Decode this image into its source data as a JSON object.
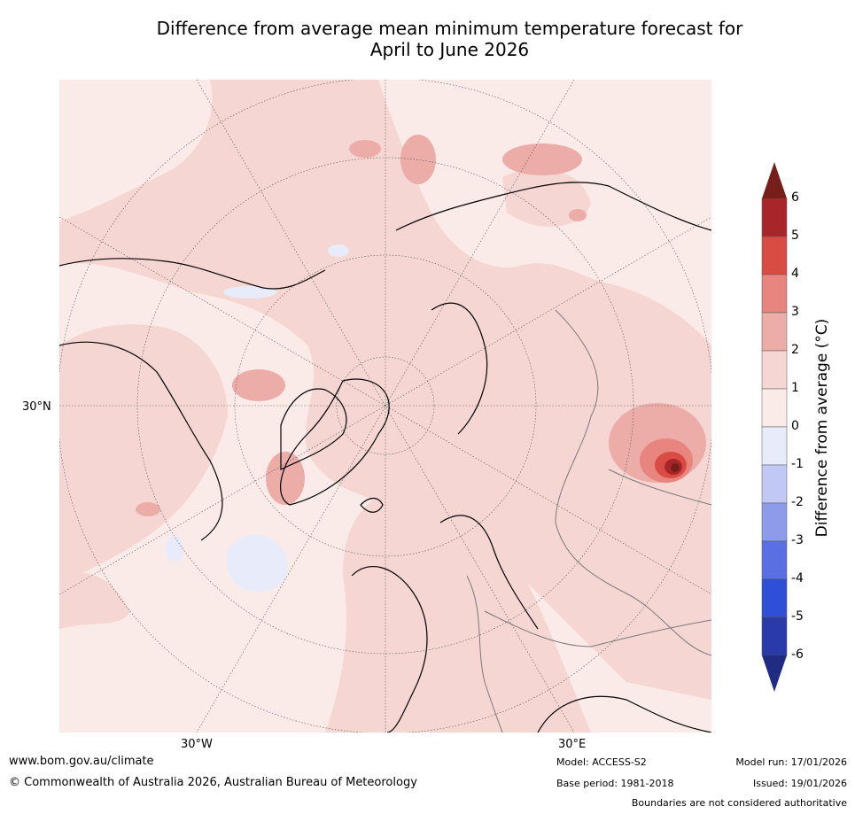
{
  "title_line1": "Difference from average mean minimum temperature forecast for",
  "title_line2": "April to June 2026",
  "map": {
    "lat_label": "30°N",
    "lon_labels": [
      "30°W",
      "30°E"
    ]
  },
  "colorbar": {
    "title": "Difference from average (°C)",
    "levels": [
      -6,
      -5,
      -4,
      -3,
      -2,
      -1,
      0,
      1,
      2,
      3,
      4,
      5,
      6
    ],
    "tick_labels": [
      "6",
      "5",
      "4",
      "3",
      "2",
      "1",
      "0",
      "-1",
      "-2",
      "-3",
      "-4",
      "-5",
      "-6"
    ],
    "colors_top_to_bottom": [
      "#a8262a",
      "#d94c43",
      "#e8857e",
      "#ecaca7",
      "#f5d6d3",
      "#fbebe8",
      "#e8ecfa",
      "#c0c8f3",
      "#8c9cea",
      "#5a70e2",
      "#2f4fd8",
      "#2a3aa8"
    ],
    "over_color": "#781e1a",
    "under_color": "#1f2c82"
  },
  "footer": {
    "website": "www.bom.gov.au/climate",
    "copyright": "© Commonwealth of Australia 2026, Australian Bureau of Meteorology",
    "model": "Model: ACCESS-S2",
    "base_period": "Base period: 1981-2018",
    "model_run": "Model run: 17/01/2026",
    "issued": "Issued: 19/01/2026",
    "disclaimer": "Boundaries are not considered authoritative"
  }
}
